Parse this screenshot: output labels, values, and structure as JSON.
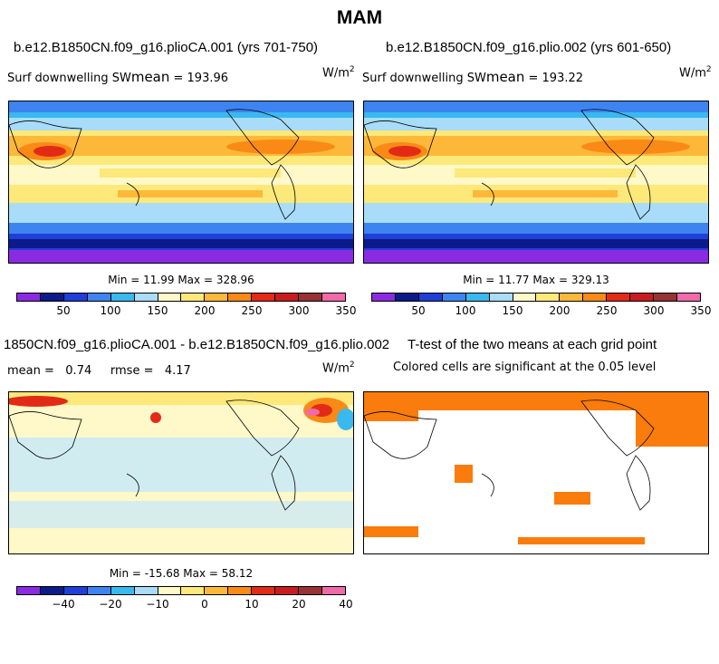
{
  "title": "MAM",
  "panels": [
    {
      "id": "top-left",
      "title": "b.e12.B1850CN.f09_g16.plioCA.001 (yrs 701-750)",
      "var_prefix": "Surf downwelling SW",
      "var_sub": "mean",
      "var_value": "=  193.96",
      "units_base": "W/m",
      "units_exp": "2",
      "min_label": "Min =  11.99 Max = 328.96"
    },
    {
      "id": "top-right",
      "title": "b.e12.B1850CN.f09_g16.plio.002 (yrs 601-650)",
      "var_prefix": "Surf downwelling SW",
      "var_sub": "mean",
      "var_value": "=  193.22",
      "units_base": "W/m",
      "units_exp": "2",
      "min_label": "Min =  11.77 Max = 329.13"
    },
    {
      "id": "bottom-left",
      "title": "1850CN.f09_g16.plioCA.001 - b.e12.B1850CN.f09_g16.plio.002",
      "stats_label": "mean =   0.74     rmse =   4.17",
      "units_base": "W/m",
      "units_exp": "2",
      "min_label": "Min = -15.68 Max =  58.12"
    },
    {
      "id": "bottom-right",
      "title": "T-test of the two means at each grid point",
      "subtitle": "Colored cells are significant at the 0.05 level"
    }
  ],
  "colorbar_colors": [
    "#8a2be2",
    "#0c1a8a",
    "#1f3fd8",
    "#3d84f0",
    "#3ab8f0",
    "#a8dcf8",
    "#fff8c8",
    "#fde87a",
    "#fdb839",
    "#f98a16",
    "#e22b16",
    "#c81c20",
    "#973235",
    "#f06aa8"
  ],
  "colorbar_full_ticks": [
    "50",
    "100",
    "150",
    "200",
    "250",
    "300",
    "350"
  ],
  "colorbar_diff_ticks": [
    "−40",
    "−20",
    "−10",
    "0",
    "10",
    "20",
    "40"
  ],
  "significance_color": "#f97c0c",
  "land_outline_color": "#000000"
}
